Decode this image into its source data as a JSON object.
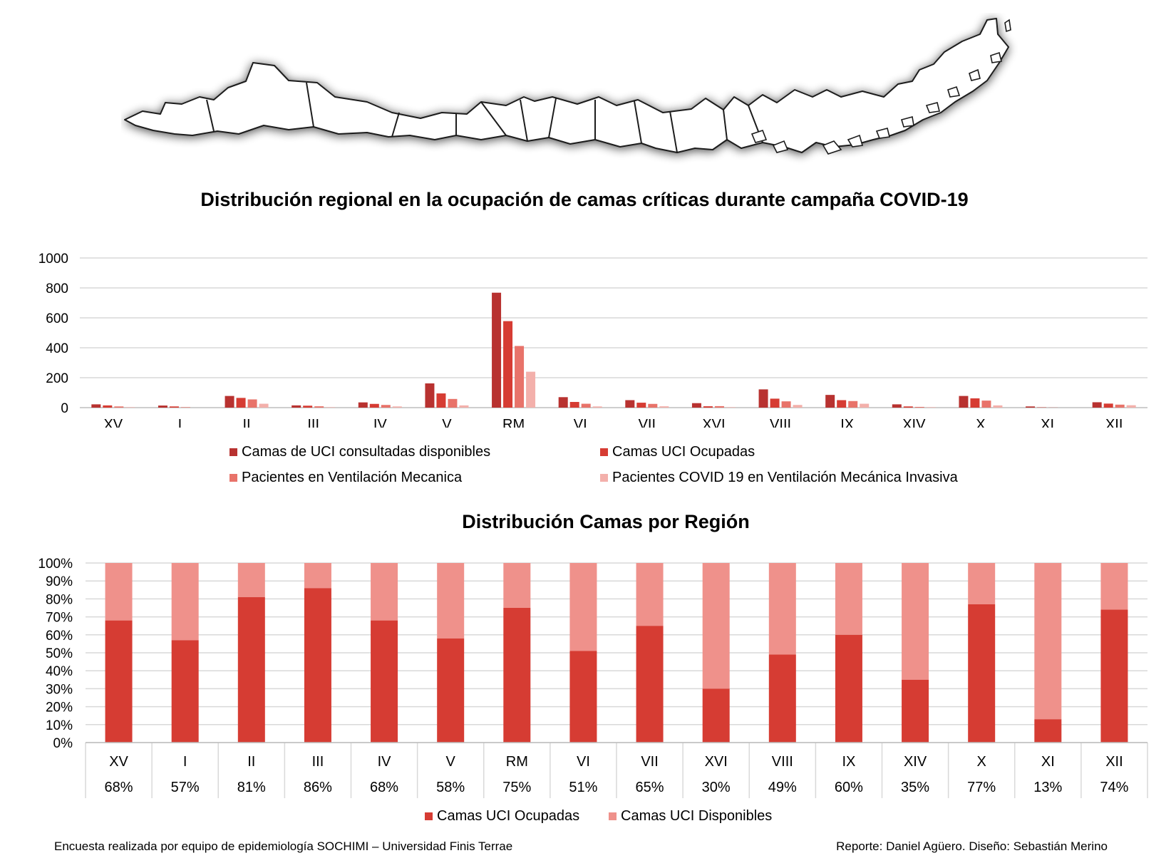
{
  "colors": {
    "consultadas": "#b83230",
    "ocupadas": "#d63c33",
    "ventilacion": "#e8736a",
    "covid": "#f3b0ab",
    "disponibles": "#ef918b"
  },
  "map": {
    "icon": "chile-regions-map-icon"
  },
  "chart_data": [
    {
      "type": "bar",
      "title": "Distribución regional en la ocupación de camas críticas durante campaña COVID-19",
      "categories": [
        "XV",
        "I",
        "II",
        "III",
        "IV",
        "V",
        "RM",
        "VI",
        "VII",
        "XVI",
        "VIII",
        "IX",
        "XIV",
        "X",
        "XI",
        "XII"
      ],
      "ylim": [
        0,
        1000
      ],
      "yticks": [
        "0",
        "200",
        "400",
        "600",
        "800",
        "1000"
      ],
      "grid": true,
      "legend": "bottom",
      "series": [
        {
          "name": "Camas de UCI consultadas disponibles",
          "color": "#b83230",
          "values": [
            22,
            14,
            78,
            15,
            35,
            162,
            768,
            70,
            50,
            30,
            122,
            85,
            22,
            78,
            8,
            36
          ]
        },
        {
          "name": "Camas UCI Ocupadas",
          "color": "#d63c33",
          "values": [
            15,
            8,
            65,
            13,
            25,
            95,
            578,
            38,
            33,
            9,
            60,
            50,
            8,
            62,
            2,
            27
          ]
        },
        {
          "name": "Pacientes en Ventilación Mecanica",
          "color": "#e8736a",
          "values": [
            8,
            3,
            55,
            9,
            18,
            58,
            412,
            26,
            25,
            10,
            42,
            44,
            5,
            47,
            1,
            20
          ]
        },
        {
          "name": "Pacientes COVID 19 en Ventilación Mecánica Invasiva",
          "color": "#f3b0ab",
          "values": [
            3,
            0,
            26,
            3,
            8,
            15,
            240,
            8,
            9,
            3,
            18,
            26,
            3,
            15,
            0,
            16
          ]
        }
      ]
    },
    {
      "type": "bar",
      "title": "Distribución Camas por Región",
      "stacked": "percent",
      "categories": [
        "XV",
        "I",
        "II",
        "III",
        "IV",
        "V",
        "RM",
        "VI",
        "VII",
        "XVI",
        "VIII",
        "IX",
        "XIV",
        "X",
        "XI",
        "XII"
      ],
      "yticks": [
        "0%",
        "10%",
        "20%",
        "30%",
        "40%",
        "50%",
        "60%",
        "70%",
        "80%",
        "90%",
        "100%"
      ],
      "grid": true,
      "legend": "bottom",
      "series": [
        {
          "name": "Camas UCI Ocupadas",
          "color": "#d63c33",
          "values": [
            68,
            57,
            81,
            86,
            68,
            58,
            75,
            51,
            65,
            30,
            49,
            60,
            35,
            77,
            13,
            74
          ],
          "labels": [
            "68%",
            "57%",
            "81%",
            "86%",
            "68%",
            "58%",
            "75%",
            "51%",
            "65%",
            "30%",
            "49%",
            "60%",
            "35%",
            "77%",
            "13%",
            "74%"
          ]
        },
        {
          "name": "Camas UCI Disponibles",
          "color": "#ef918b",
          "values": [
            32,
            43,
            19,
            14,
            32,
            42,
            25,
            49,
            35,
            70,
            51,
            40,
            65,
            23,
            87,
            26
          ]
        }
      ]
    }
  ],
  "footer": {
    "left": "Encuesta realizada por equipo de epidemiología SOCHIMI – Universidad Finis Terrae",
    "right": "Reporte: Daniel Agüero. Diseño: Sebastián Merino"
  }
}
